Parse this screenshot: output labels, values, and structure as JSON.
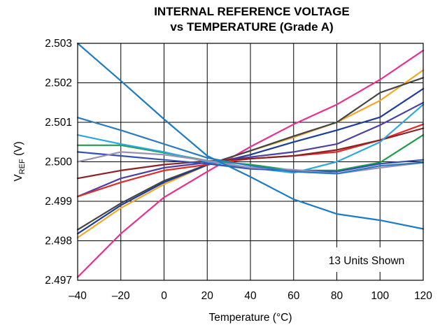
{
  "chart_data": {
    "type": "line",
    "title": "INTERNAL REFERENCE VOLTAGE",
    "subtitle": "vs TEMPERATURE (Grade A)",
    "xlabel": "Temperature (°C)",
    "ylabel_main": "V",
    "ylabel_sub": "REF",
    "ylabel_unit": " (V)",
    "annotation": "13 Units Shown",
    "xlim": [
      -40,
      120
    ],
    "ylim": [
      2.497,
      2.503
    ],
    "grid": true,
    "x_ticks": [
      -40,
      -20,
      0,
      20,
      40,
      60,
      80,
      100,
      120
    ],
    "x_tick_labels": [
      "–40",
      "–20",
      "0",
      "20",
      "40",
      "60",
      "80",
      "100",
      "120"
    ],
    "y_ticks": [
      2.497,
      2.498,
      2.499,
      2.5,
      2.501,
      2.502,
      2.503
    ],
    "y_tick_labels": [
      "2.497",
      "2.498",
      "2.499",
      "2.500",
      "2.501",
      "2.502",
      "2.503"
    ],
    "series": [
      {
        "color": "#E8308E",
        "points": [
          [
            -40,
            2.49708
          ],
          [
            -20,
            2.49818
          ],
          [
            0,
            2.4991
          ],
          [
            20,
            2.49975
          ],
          [
            40,
            2.50038
          ],
          [
            60,
            2.50095
          ],
          [
            80,
            2.50145
          ],
          [
            100,
            2.50208
          ],
          [
            120,
            2.50282
          ]
        ]
      },
      {
        "color": "#F5A623",
        "points": [
          [
            -40,
            2.49808
          ],
          [
            -20,
            2.49883
          ],
          [
            0,
            2.49943
          ],
          [
            20,
            2.49992
          ],
          [
            40,
            2.50028
          ],
          [
            60,
            2.50062
          ],
          [
            80,
            2.501
          ],
          [
            100,
            2.50155
          ],
          [
            120,
            2.50232
          ]
        ]
      },
      {
        "color": "#444444",
        "points": [
          [
            -40,
            2.49828
          ],
          [
            -20,
            2.49895
          ],
          [
            0,
            2.49952
          ],
          [
            20,
            2.49993
          ],
          [
            40,
            2.50028
          ],
          [
            60,
            2.50065
          ],
          [
            80,
            2.501
          ],
          [
            100,
            2.50175
          ],
          [
            120,
            2.50213
          ]
        ]
      },
      {
        "color": "#1E3C9A",
        "points": [
          [
            -40,
            2.49818
          ],
          [
            -20,
            2.4989
          ],
          [
            0,
            2.49948
          ],
          [
            20,
            2.49992
          ],
          [
            40,
            2.50018
          ],
          [
            60,
            2.5005
          ],
          [
            80,
            2.5008
          ],
          [
            100,
            2.50113
          ],
          [
            120,
            2.50185
          ]
        ]
      },
      {
        "color": "#4B3FA8",
        "points": [
          [
            -40,
            2.49912
          ],
          [
            -20,
            2.49958
          ],
          [
            0,
            2.49985
          ],
          [
            20,
            2.49998
          ],
          [
            40,
            2.50012
          ],
          [
            60,
            2.50025
          ],
          [
            80,
            2.50045
          ],
          [
            100,
            2.50093
          ],
          [
            120,
            2.5015
          ]
        ]
      },
      {
        "color": "#E32A2A",
        "points": [
          [
            -40,
            2.49912
          ],
          [
            -20,
            2.49948
          ],
          [
            0,
            2.49978
          ],
          [
            20,
            2.49993
          ],
          [
            40,
            2.50008
          ],
          [
            60,
            2.50015
          ],
          [
            80,
            2.50025
          ],
          [
            100,
            2.50055
          ],
          [
            120,
            2.50095
          ]
        ]
      },
      {
        "color": "#8B2323",
        "points": [
          [
            -40,
            2.49958
          ],
          [
            -20,
            2.49978
          ],
          [
            0,
            2.49993
          ],
          [
            20,
            2.50002
          ],
          [
            40,
            2.50008
          ],
          [
            60,
            2.50015
          ],
          [
            80,
            2.5003
          ],
          [
            100,
            2.50055
          ],
          [
            120,
            2.50085
          ]
        ]
      },
      {
        "color": "#1C9E4B",
        "points": [
          [
            -40,
            2.50042
          ],
          [
            -20,
            2.50042
          ],
          [
            0,
            2.50023
          ],
          [
            20,
            2.50003
          ],
          [
            40,
            2.49993
          ],
          [
            60,
            2.49978
          ],
          [
            80,
            2.49978
          ],
          [
            100,
            2.49998
          ],
          [
            120,
            2.50068
          ]
        ]
      },
      {
        "color": "#2EA8DC",
        "points": [
          [
            -40,
            2.50068
          ],
          [
            -20,
            2.50045
          ],
          [
            0,
            2.50025
          ],
          [
            20,
            2.5
          ],
          [
            40,
            2.49985
          ],
          [
            60,
            2.49972
          ],
          [
            80,
            2.5
          ],
          [
            100,
            2.5005
          ],
          [
            120,
            2.50145
          ]
        ]
      },
      {
        "color": "#3550B0",
        "points": [
          [
            -40,
            2.50025
          ],
          [
            -20,
            2.50015
          ],
          [
            0,
            2.50005
          ],
          [
            20,
            2.49995
          ],
          [
            40,
            2.49982
          ],
          [
            60,
            2.49978
          ],
          [
            80,
            2.49975
          ],
          [
            100,
            2.49995
          ],
          [
            120,
            2.50005
          ]
        ]
      },
      {
        "color": "#9A8FB5",
        "points": [
          [
            -40,
            2.5
          ],
          [
            -20,
            2.50025
          ],
          [
            0,
            2.50018
          ],
          [
            20,
            2.50003
          ],
          [
            40,
            2.49985
          ],
          [
            60,
            2.4998
          ],
          [
            80,
            2.4997
          ],
          [
            100,
            2.49985
          ],
          [
            120,
            2.49998
          ]
        ]
      },
      {
        "color": "#2B7BC0",
        "points": [
          [
            -40,
            2.50112
          ],
          [
            -20,
            2.5008
          ],
          [
            0,
            2.50045
          ],
          [
            20,
            2.5001
          ],
          [
            40,
            2.4999
          ],
          [
            60,
            2.49975
          ],
          [
            80,
            2.4997
          ],
          [
            100,
            2.4999
          ],
          [
            120,
            2.49998
          ]
        ]
      },
      {
        "color": "#1A7CC4",
        "points": [
          [
            -40,
            2.503
          ],
          [
            -20,
            2.50205
          ],
          [
            0,
            2.50108
          ],
          [
            20,
            2.50015
          ],
          [
            40,
            2.49962
          ],
          [
            60,
            2.49905
          ],
          [
            80,
            2.49868
          ],
          [
            100,
            2.49852
          ],
          [
            120,
            2.4983
          ]
        ]
      }
    ]
  }
}
